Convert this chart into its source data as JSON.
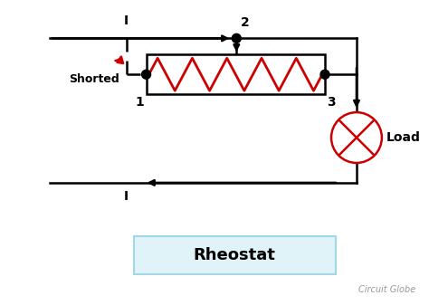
{
  "bg_color": "#ffffff",
  "wire_color": "#000000",
  "resistor_color": "#cc0000",
  "load_circle_color": "#cc0000",
  "title": "Rheostat",
  "title_box_color": "#dff3f8",
  "title_box_edge": "#a0d8e8",
  "watermark": "Circuit Globe",
  "label_1": "1",
  "label_2": "2",
  "label_3": "3",
  "label_I_top": "I",
  "label_I_bot": "I",
  "label_shorted": "Shorted",
  "label_load": "Load",
  "figsize": [
    4.74,
    3.37
  ],
  "dpi": 100
}
